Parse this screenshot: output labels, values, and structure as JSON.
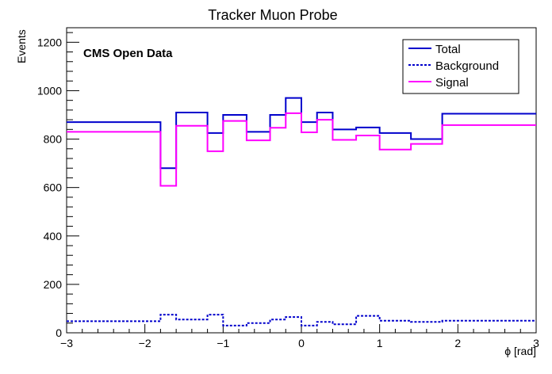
{
  "chart_data": {
    "type": "line",
    "title": "Tracker Muon Probe",
    "annotation": "CMS Open Data",
    "xlabel": "ϕ [rad]",
    "ylabel": "Events",
    "xlim": [
      -3,
      3
    ],
    "ylim": [
      0,
      1260
    ],
    "grid": false,
    "legend_placement": "top-right",
    "x_ticks": [
      -3,
      -2,
      -1,
      0,
      1,
      2,
      3
    ],
    "x_tick_labels": [
      "−3",
      "−2",
      "−1",
      "0",
      "1",
      "2",
      "3"
    ],
    "y_ticks": [
      0,
      200,
      400,
      600,
      800,
      1000,
      1200
    ],
    "y_tick_labels": [
      "0",
      "200",
      "400",
      "600",
      "800",
      "1000",
      "1200"
    ],
    "bin_edges": [
      -3.0,
      -1.8,
      -1.6,
      -1.2,
      -1.0,
      -0.7,
      -0.4,
      -0.2,
      0.0,
      0.2,
      0.4,
      0.7,
      1.0,
      1.4,
      1.8,
      3.0
    ],
    "series": [
      {
        "name": "Total",
        "color": "#0000cc",
        "style": "solid",
        "values": [
          870,
          680,
          910,
          825,
          900,
          830,
          900,
          970,
          870,
          910,
          840,
          848,
          825,
          800,
          905
        ]
      },
      {
        "name": "Background",
        "color": "#0000cc",
        "style": "dotted",
        "values": [
          48,
          75,
          55,
          75,
          30,
          40,
          55,
          65,
          30,
          45,
          35,
          70,
          50,
          45,
          50
        ]
      },
      {
        "name": "Signal",
        "color": "#ff00ff",
        "style": "solid",
        "values": [
          830,
          607,
          855,
          750,
          875,
          795,
          847,
          907,
          828,
          880,
          797,
          815,
          757,
          780,
          858
        ]
      }
    ]
  }
}
